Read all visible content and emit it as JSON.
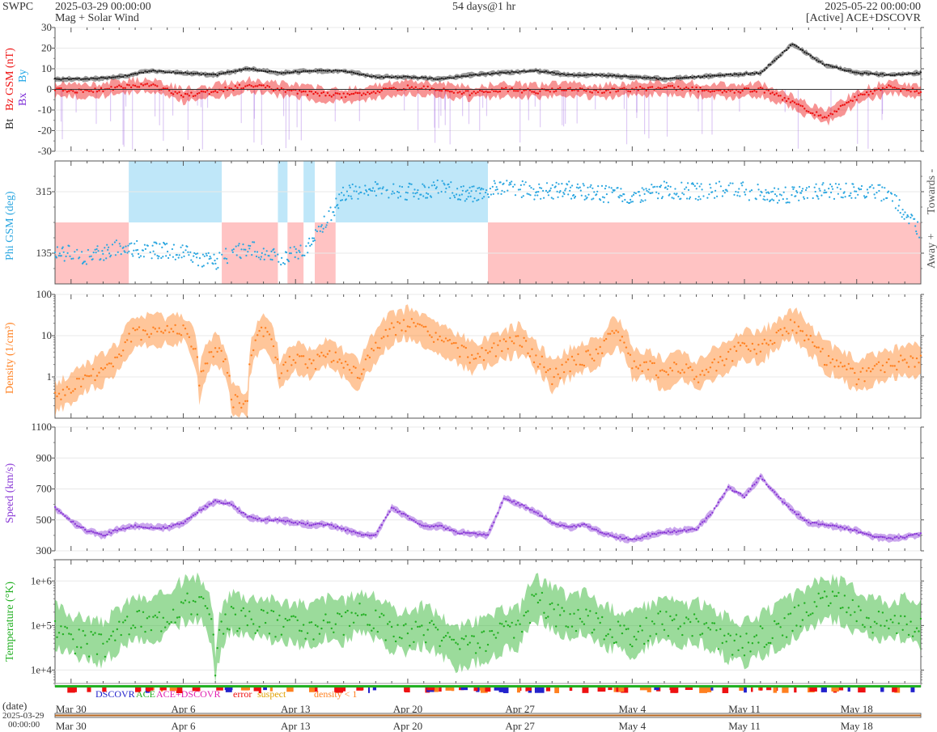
{
  "header": {
    "org": "SWPC",
    "start": "2025-03-29 00:00:00",
    "subtitle": "Mag + Solar Wind",
    "span": "54 days@1 hr",
    "end": "2025-05-22 00:00:00",
    "source": "[Active] ACE+DSCOVR"
  },
  "bottom": {
    "date_label": "(date)",
    "date_value": "2025-03-29",
    "time_value": "00:00:00"
  },
  "colors": {
    "bt": "#222222",
    "bz": "#ee1111",
    "bx": "#7a2ad6",
    "by": "#1ea6e6",
    "phi": "#2aa6e0",
    "density": "#ff8020",
    "speed": "#8a3ad6",
    "temperature": "#22b022",
    "towards_fill": "#bfe7f9",
    "away_fill": "#ffc3c3"
  },
  "chart_data": [
    {
      "type": "line",
      "panel": "magnetic-field",
      "ylabel_parts": [
        "Bt",
        "Bz GSM (nT)",
        "Bx",
        "By"
      ],
      "ylim": [
        -30,
        30
      ],
      "yticks": [
        -30,
        -20,
        -10,
        0,
        10,
        20,
        30
      ],
      "x_start_day": 0,
      "x_step_days": 2,
      "series": [
        {
          "name": "Bt",
          "values": [
            5,
            5,
            6,
            9,
            8,
            7,
            10,
            8,
            9,
            9,
            6,
            6,
            5,
            7,
            8,
            9,
            7,
            7,
            6,
            5,
            6,
            7,
            8,
            22,
            12,
            8,
            7,
            8,
            7,
            6,
            10,
            17,
            12,
            9,
            8,
            12,
            9,
            8,
            10,
            7,
            6,
            7,
            12,
            10,
            8,
            7,
            6,
            5,
            5,
            6,
            5,
            6,
            7,
            5,
            6,
            8,
            8,
            7,
            9,
            10,
            11,
            8,
            8,
            7,
            7,
            6,
            7,
            7,
            8,
            6,
            6,
            7,
            8,
            9,
            11,
            9,
            8,
            7,
            7,
            6,
            6,
            7,
            6,
            8,
            7,
            7,
            8,
            9,
            14,
            19,
            12,
            9,
            8,
            8,
            8,
            9,
            9,
            9
          ]
        },
        {
          "name": "Bz GSM",
          "values": [
            0,
            -1,
            1,
            2,
            -3,
            -1,
            2,
            0,
            -2,
            -3,
            -1,
            1,
            0,
            -2,
            0,
            -1,
            0,
            -1,
            0,
            1,
            0,
            -1,
            0,
            -6,
            -14,
            -4,
            1,
            -1,
            -2,
            -3,
            -4,
            -2,
            0,
            1,
            -1,
            0,
            2,
            -1,
            0,
            1,
            -1,
            0,
            1,
            -1,
            0,
            1,
            0,
            -1,
            0,
            0,
            -1,
            1,
            0,
            -1,
            -2,
            -3,
            0,
            1,
            -1,
            0,
            0,
            -1,
            1,
            0,
            -1,
            0,
            0,
            1,
            0,
            -1,
            0,
            1,
            -1,
            -2,
            0,
            1,
            0,
            -1,
            0,
            -1,
            -2,
            0,
            -1,
            0,
            1,
            -1,
            -2,
            -3,
            -5,
            -6,
            -2,
            -1,
            0,
            1,
            -1,
            0,
            -1,
            -2
          ]
        }
      ]
    },
    {
      "type": "scatter",
      "panel": "phi-angle",
      "ylabel": "Phi GSM (deg)",
      "right_labels": [
        "Towards -",
        "Away +"
      ],
      "ylim": [
        45,
        405
      ],
      "yticks": [
        135,
        315
      ],
      "x_start_day": 0,
      "x_step_days": 2,
      "sector_bounds_days": [
        0,
        4.6,
        10.4,
        13.9,
        14.5,
        15.5,
        16.2,
        17.5,
        27.0,
        54.0
      ],
      "sector_sides": [
        "away",
        "towards",
        "away",
        "towards",
        "away",
        "towards",
        "away",
        "towards",
        "away"
      ],
      "series": [
        {
          "name": "Phi",
          "values": [
            140,
            125,
            150,
            145,
            135,
            110,
            150,
            120,
            160,
            310,
            320,
            315,
            325,
            305,
            330,
            315,
            320,
            310,
            300,
            320,
            315,
            325,
            310,
            305,
            320,
            315,
            310,
            200,
            175,
            195,
            180,
            300,
            315,
            320,
            310,
            290,
            330,
            315,
            150,
            140,
            135,
            130,
            125,
            145,
            140,
            155,
            130,
            120,
            140,
            135,
            150,
            145,
            125,
            140,
            130,
            150,
            145,
            140,
            130,
            125,
            135,
            150,
            140,
            145,
            310,
            320,
            325,
            315,
            320,
            310,
            300,
            315,
            325,
            320,
            330,
            315,
            305,
            320,
            310,
            300,
            315,
            320,
            310,
            295,
            300,
            315,
            320,
            310,
            325,
            140,
            135,
            145,
            150,
            140,
            130,
            145
          ]
        }
      ]
    },
    {
      "type": "line",
      "panel": "density",
      "ylabel": "Density (1/cm³)",
      "yscale": "log",
      "ylim": [
        0.1,
        100
      ],
      "yticks": [
        1,
        10,
        100
      ],
      "x_start_day": 0,
      "x_step_days": 1,
      "series": [
        {
          "name": "Density",
          "values": [
            0.3,
            0.5,
            1,
            1.5,
            3,
            12,
            14,
            13,
            15,
            0.5,
            5,
            0.3,
            0.2,
            13,
            1,
            3,
            2,
            4,
            2,
            1,
            5,
            15,
            20,
            13,
            8,
            5,
            3,
            4,
            6,
            8,
            3,
            1,
            2,
            3,
            4,
            12,
            2,
            2,
            1,
            2,
            1,
            2,
            3,
            6,
            5,
            10,
            20,
            8,
            3,
            2,
            1,
            1.5,
            2,
            2.5
          ]
        }
      ]
    },
    {
      "type": "line",
      "panel": "speed",
      "ylabel": "Speed (km/s)",
      "ylim": [
        300,
        1100
      ],
      "yticks": [
        300,
        500,
        700,
        900,
        1100
      ],
      "x_start_day": 0,
      "x_step_days": 1,
      "series": [
        {
          "name": "Speed",
          "values": [
            580,
            490,
            430,
            400,
            440,
            460,
            450,
            450,
            480,
            560,
            620,
            600,
            520,
            500,
            500,
            480,
            470,
            470,
            440,
            410,
            400,
            580,
            520,
            460,
            460,
            420,
            410,
            400,
            640,
            600,
            550,
            480,
            450,
            470,
            420,
            390,
            370,
            400,
            420,
            430,
            440,
            550,
            710,
            650,
            780,
            660,
            560,
            480,
            470,
            450,
            430,
            390,
            380,
            390,
            410,
            400,
            440,
            480,
            700,
            600,
            520,
            510,
            520
          ]
        }
      ]
    },
    {
      "type": "line",
      "panel": "temperature",
      "ylabel": "Temperature (°K)",
      "yscale": "log",
      "ylim": [
        5000,
        3000000
      ],
      "yticks": [
        10000,
        100000,
        1000000
      ],
      "yticklabels": [
        "1e+4",
        "1e+5",
        "1e+6"
      ],
      "x_start_day": 0,
      "x_step_days": 1,
      "series": [
        {
          "name": "Temperature",
          "values": [
            100000,
            60000,
            50000,
            40000,
            80000,
            150000,
            120000,
            200000,
            350000,
            400000,
            5000,
            200000,
            150000,
            150000,
            120000,
            110000,
            100000,
            150000,
            120000,
            200000,
            150000,
            80000,
            70000,
            100000,
            60000,
            30000,
            40000,
            50000,
            80000,
            90000,
            400000,
            250000,
            150000,
            200000,
            100000,
            80000,
            60000,
            100000,
            150000,
            100000,
            120000,
            80000,
            50000,
            40000,
            60000,
            90000,
            150000,
            250000,
            400000,
            350000,
            200000,
            150000,
            120000,
            150000,
            100000,
            80000,
            60000,
            40000,
            50000,
            40000,
            60000,
            80000,
            90000,
            100000,
            80000,
            100000,
            150000,
            300000,
            200000,
            180000,
            120000,
            100000,
            150000,
            200000
          ]
        }
      ]
    },
    {
      "type": "table",
      "panel": "source-status",
      "legend": [
        "DSCOVR",
        "ACE",
        "ACE+DSCOVR",
        "error",
        "suspect",
        "density < 1"
      ],
      "x_tick_labels": [
        "Mar 30",
        "Apr 6",
        "Apr 13",
        "Apr 20",
        "Apr 27",
        "May 4",
        "May 11",
        "May 18"
      ],
      "x_tick_days": [
        1,
        8,
        15,
        22,
        29,
        36,
        43,
        50
      ]
    }
  ]
}
